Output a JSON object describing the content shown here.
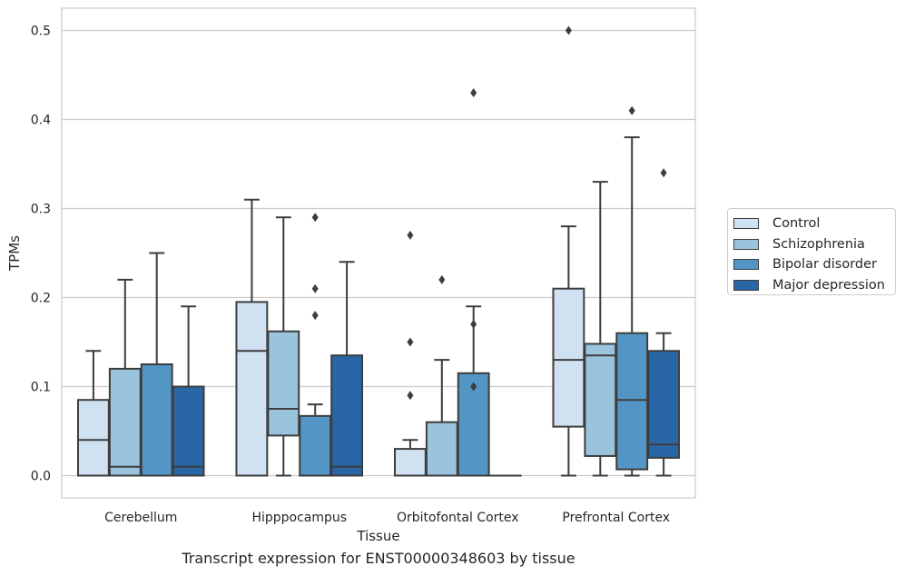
{
  "chart_data": {
    "type": "box",
    "caption": "Transcript expression for ENST00000348603 by tissue",
    "xlabel": "Tissue",
    "ylabel": "TPMs",
    "ylim": [
      -0.025,
      0.525
    ],
    "yticks": [
      0.0,
      0.1,
      0.2,
      0.3,
      0.4,
      0.5
    ],
    "ytick_labels": [
      "0.0",
      "0.1",
      "0.2",
      "0.3",
      "0.4",
      "0.5"
    ],
    "grid": "horizontal",
    "legend_position": "right",
    "categories": [
      "Cerebellum",
      "Hipppocampus",
      "Orbitofontal Cortex",
      "Prefrontal Cortex"
    ],
    "series": [
      {
        "name": "Control",
        "color": "#d0e2f2",
        "boxes": [
          {
            "whislo": 0.0,
            "q1": 0.0,
            "med": 0.04,
            "q3": 0.085,
            "whishi": 0.14,
            "fliers": []
          },
          {
            "whislo": 0.0,
            "q1": 0.0,
            "med": 0.14,
            "q3": 0.195,
            "whishi": 0.31,
            "fliers": []
          },
          {
            "whislo": 0.0,
            "q1": 0.0,
            "med": 0.0,
            "q3": 0.03,
            "whishi": 0.04,
            "fliers": [
              0.09,
              0.15,
              0.27
            ]
          },
          {
            "whislo": 0.0,
            "q1": 0.055,
            "med": 0.13,
            "q3": 0.21,
            "whishi": 0.28,
            "fliers": [
              0.5
            ]
          }
        ]
      },
      {
        "name": "Schizophrenia",
        "color": "#9ac4dd",
        "boxes": [
          {
            "whislo": 0.0,
            "q1": 0.0,
            "med": 0.01,
            "q3": 0.12,
            "whishi": 0.22,
            "fliers": []
          },
          {
            "whislo": 0.0,
            "q1": 0.045,
            "med": 0.075,
            "q3": 0.162,
            "whishi": 0.29,
            "fliers": []
          },
          {
            "whislo": 0.0,
            "q1": 0.0,
            "med": 0.0,
            "q3": 0.06,
            "whishi": 0.13,
            "fliers": [
              0.22
            ]
          },
          {
            "whislo": 0.0,
            "q1": 0.022,
            "med": 0.135,
            "q3": 0.148,
            "whishi": 0.33,
            "fliers": []
          }
        ]
      },
      {
        "name": "Bipolar disorder",
        "color": "#5396c6",
        "boxes": [
          {
            "whislo": 0.0,
            "q1": 0.0,
            "med": 0.0,
            "q3": 0.125,
            "whishi": 0.25,
            "fliers": []
          },
          {
            "whislo": 0.0,
            "q1": 0.0,
            "med": 0.0,
            "q3": 0.067,
            "whishi": 0.08,
            "fliers": [
              0.18,
              0.21,
              0.29
            ]
          },
          {
            "whislo": 0.0,
            "q1": 0.0,
            "med": 0.0,
            "q3": 0.115,
            "whishi": 0.19,
            "fliers": [
              0.1,
              0.17,
              0.43
            ]
          },
          {
            "whislo": 0.0,
            "q1": 0.007,
            "med": 0.085,
            "q3": 0.16,
            "whishi": 0.38,
            "fliers": [
              0.41
            ]
          }
        ]
      },
      {
        "name": "Major depression",
        "color": "#2866a5",
        "boxes": [
          {
            "whislo": 0.0,
            "q1": 0.0,
            "med": 0.01,
            "q3": 0.1,
            "whishi": 0.19,
            "fliers": []
          },
          {
            "whislo": 0.0,
            "q1": 0.0,
            "med": 0.01,
            "q3": 0.135,
            "whishi": 0.24,
            "fliers": []
          },
          {
            "whislo": 0.0,
            "q1": 0.0,
            "med": 0.0,
            "q3": 0.0,
            "whishi": 0.0,
            "fliers": []
          },
          {
            "whislo": 0.0,
            "q1": 0.02,
            "med": 0.035,
            "q3": 0.14,
            "whishi": 0.16,
            "fliers": [
              0.34
            ]
          }
        ]
      }
    ]
  }
}
